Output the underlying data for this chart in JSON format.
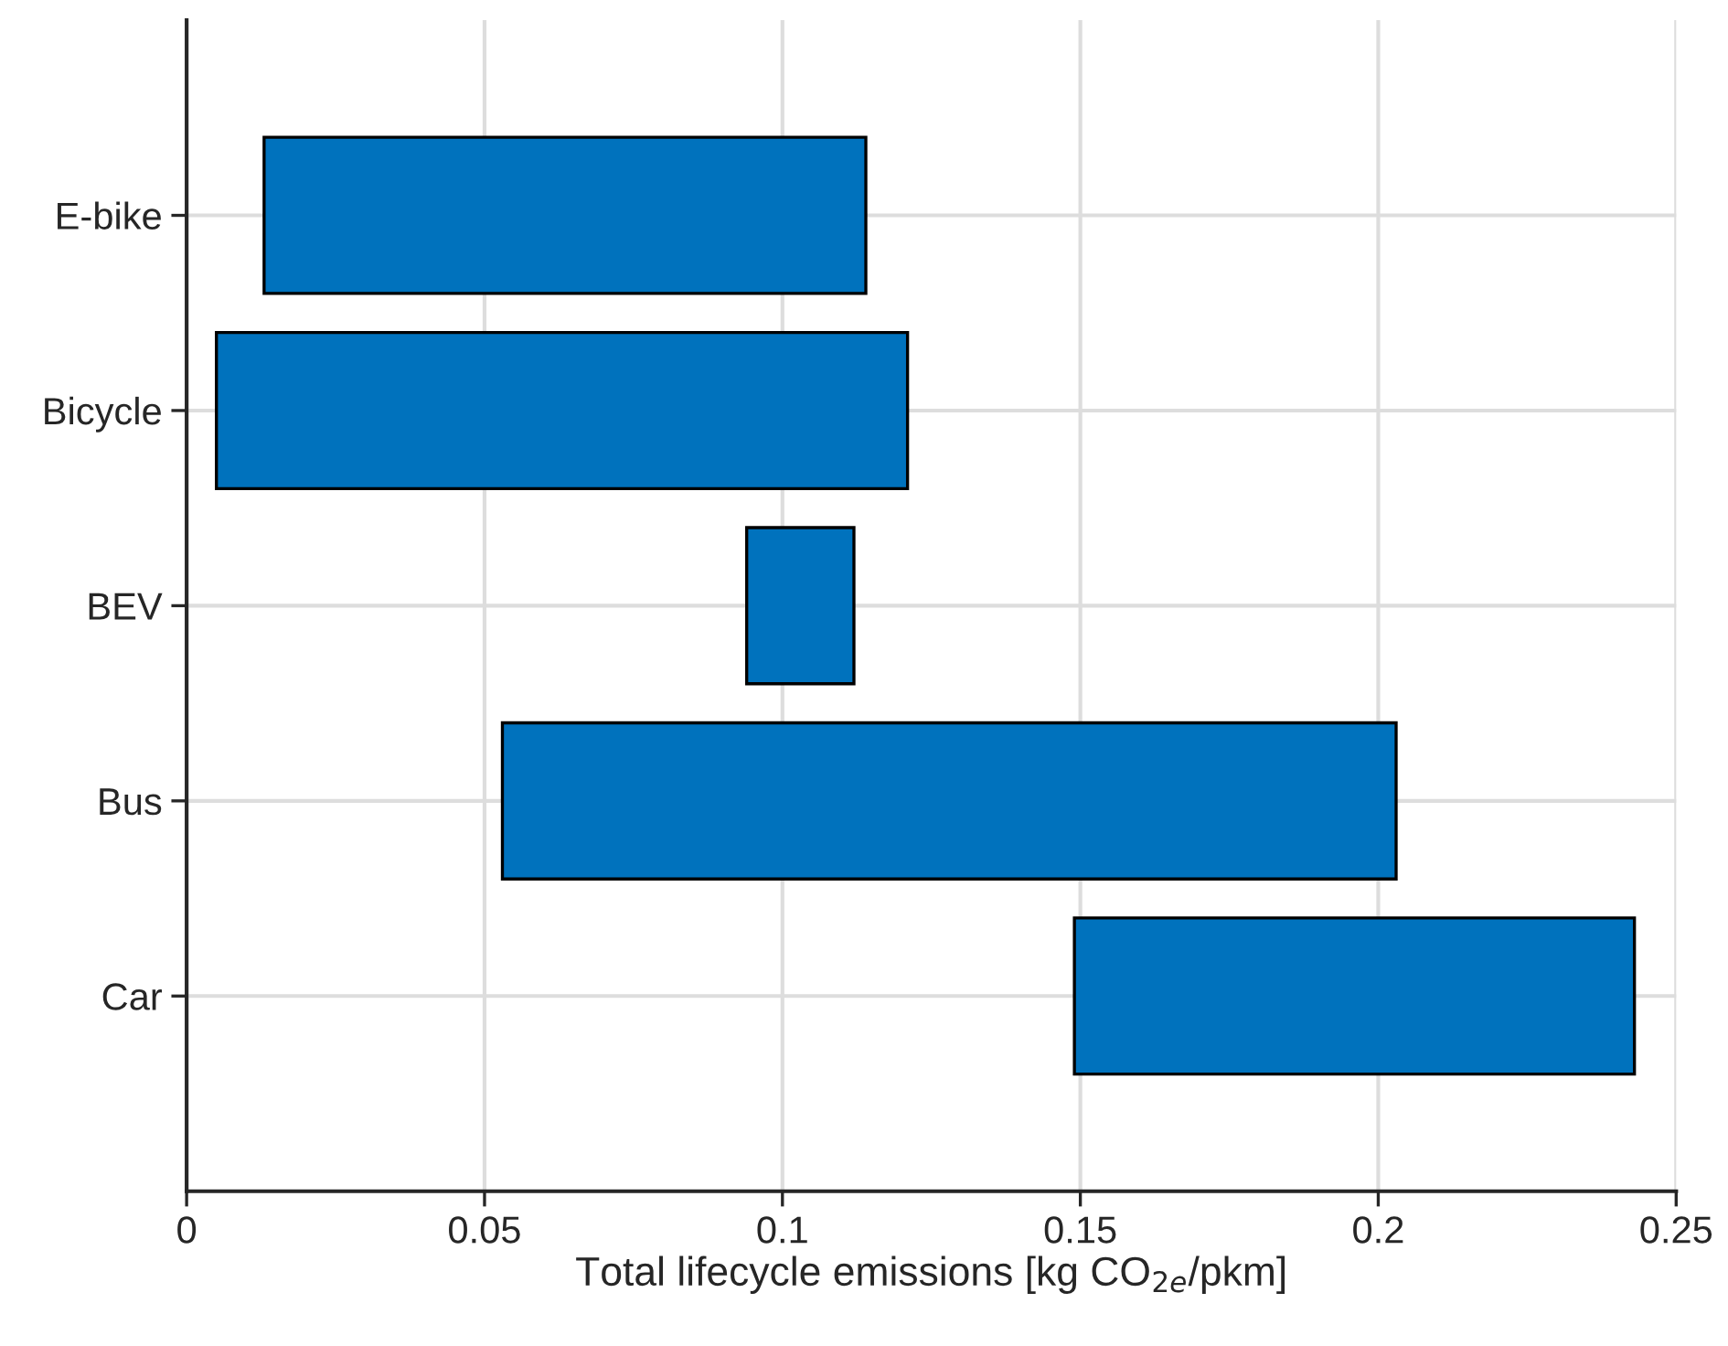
{
  "chart_data": {
    "type": "bar",
    "orientation": "horizontal",
    "categories": [
      "E-bike",
      "Bicycle",
      "BEV",
      "Bus",
      "Car"
    ],
    "base": [
      0.013,
      0.005,
      0.094,
      0.053,
      0.149
    ],
    "values": [
      0.101,
      0.116,
      0.018,
      0.15,
      0.094
    ],
    "color": "#0072bd",
    "xlabel": "Total lifecycle emissions [kg CO$_{2e}$/pkm]",
    "xlim": [
      0,
      0.25
    ],
    "xticks": [
      0,
      0.05,
      0.1,
      0.15,
      0.2,
      0.25
    ],
    "grid": true
  }
}
